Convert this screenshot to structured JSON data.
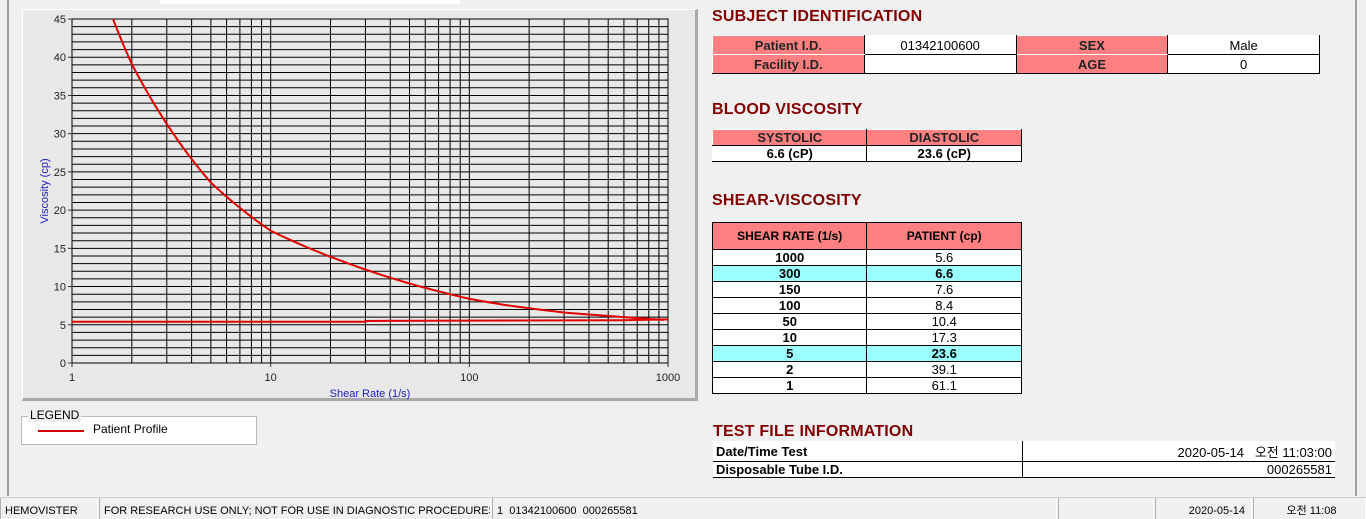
{
  "chart_data": {
    "type": "line",
    "xlabel": "Shear Rate (1/s)",
    "ylabel": "Viscosity (cp)",
    "x_scale": "log",
    "xlim": [
      1,
      1000
    ],
    "ylim": [
      0,
      45
    ],
    "x_ticks": [
      "1",
      "10",
      "100",
      "1000"
    ],
    "y_ticks": [
      "0",
      "5",
      "10",
      "15",
      "20",
      "25",
      "30",
      "35",
      "40",
      "45"
    ],
    "grid": true,
    "legend_placement": "below",
    "series": [
      {
        "name": "Patient Profile",
        "color": "#e00000",
        "x": [
          1,
          2,
          5,
          10,
          50,
          100,
          150,
          300,
          1000
        ],
        "y": [
          61.1,
          39.1,
          23.6,
          17.3,
          10.4,
          8.4,
          7.6,
          6.6,
          5.6
        ]
      },
      {
        "color": "#e00000",
        "x": [
          1,
          30,
          30,
          600,
          1000
        ],
        "y": [
          5.4,
          5.4,
          5.5,
          5.6,
          5.7
        ]
      }
    ]
  },
  "legend": {
    "title": "LEGEND",
    "items": [
      {
        "label": "Patient Profile",
        "color": "#e00000"
      }
    ]
  },
  "subject": {
    "title": "SUBJECT IDENTIFICATION",
    "patient_id_label": "Patient I.D.",
    "patient_id": "01342100600",
    "sex_label": "SEX",
    "sex": "Male",
    "facility_label": "Facility I.D.",
    "facility": "",
    "age_label": "AGE",
    "age": "0"
  },
  "blood_viscosity": {
    "title": "BLOOD VISCOSITY",
    "systolic_label": "SYSTOLIC",
    "diastolic_label": "DIASTOLIC",
    "systolic": "6.6 (cP)",
    "diastolic": "23.6 (cP)"
  },
  "shear": {
    "title": "SHEAR-VISCOSITY",
    "col_rate": "SHEAR RATE (1/s)",
    "col_patient": "PATIENT (cp)",
    "rows": [
      [
        "1000",
        "5.6",
        false
      ],
      [
        "300",
        "6.6",
        true
      ],
      [
        "150",
        "7.6",
        false
      ],
      [
        "100",
        "8.4",
        false
      ],
      [
        "50",
        "10.4",
        false
      ],
      [
        "10",
        "17.3",
        false
      ],
      [
        "5",
        "23.6",
        true
      ],
      [
        "2",
        "39.1",
        false
      ],
      [
        "1",
        "61.1",
        false
      ]
    ]
  },
  "test_file": {
    "title": "TEST FILE INFORMATION",
    "datetime_label": "Date/Time Test",
    "datetime": "2020-05-14   오전 11:03:00",
    "tube_label": "Disposable Tube I.D.",
    "tube": "000265581"
  },
  "status": {
    "app": "HEMOVISTER",
    "notice": "FOR RESEARCH USE ONLY; NOT FOR USE IN DIAGNOSTIC PROCEDURES",
    "file": "1  01342100600  000265581",
    "blank": "",
    "date": "2020-05-14",
    "time": "오전 11:08"
  },
  "colors": {
    "header": "#ff8080",
    "highlight": "#99ffff",
    "title": "#800000"
  }
}
